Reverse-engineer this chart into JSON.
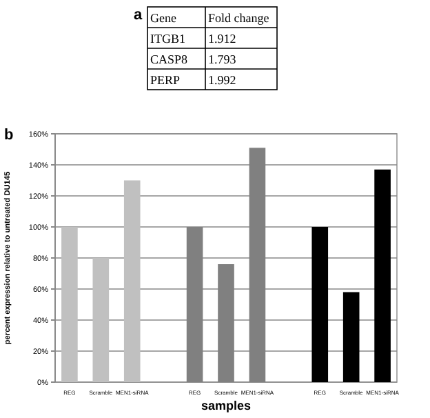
{
  "chart_data": [
    {
      "type": "other",
      "title": "a",
      "annotations": [
        "Gene",
        "Fold change",
        "ITGB1",
        "1.912",
        "CASP8",
        "1.793",
        "PERP",
        "1.992"
      ]
    },
    {
      "type": "bar",
      "title": "b",
      "xlabel": "samples",
      "ylabel": "percent expression relative to untreated DU145",
      "categories": [
        "REG",
        "Scramble",
        "MEN1-siRNA",
        null,
        "REG",
        "Scramble",
        "MEN1-siRNA",
        null,
        "REG",
        "Scramble",
        "MEN1-siRNA"
      ],
      "values": [
        100,
        80,
        130,
        null,
        100,
        76,
        151,
        null,
        100,
        58,
        137
      ],
      "colors": [
        "#c0c0c0",
        "#c0c0c0",
        "#c0c0c0",
        null,
        "#808080",
        "#808080",
        "#808080",
        null,
        "#000000",
        "#000000",
        "#000000"
      ],
      "ylim": [
        0,
        160
      ],
      "yticks": [
        {
          "value": 0,
          "label": "0%"
        },
        {
          "value": 20,
          "label": "20%"
        },
        {
          "value": 40,
          "label": "40%"
        },
        {
          "value": 60,
          "label": "60%"
        },
        {
          "value": 80,
          "label": "80%"
        },
        {
          "value": 100,
          "label": "100%"
        },
        {
          "value": 120,
          "label": "120%"
        },
        {
          "value": 140,
          "label": "140%"
        },
        {
          "value": 160,
          "label": "160%"
        }
      ],
      "grid": "y"
    }
  ]
}
